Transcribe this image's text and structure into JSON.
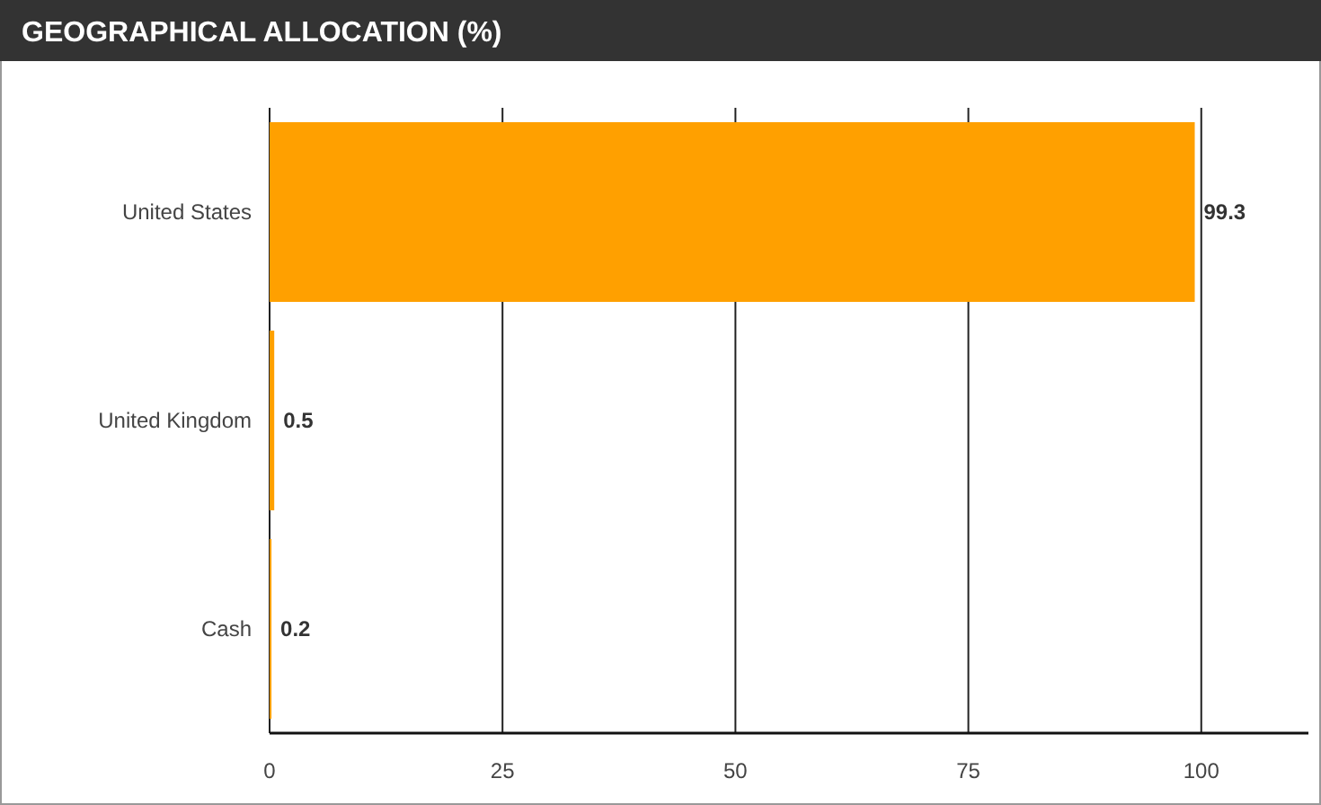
{
  "chart_data": {
    "type": "bar",
    "orientation": "horizontal",
    "title": "GEOGRAPHICAL ALLOCATION (%)",
    "categories": [
      "United States",
      "United Kingdom",
      "Cash"
    ],
    "values": [
      99.3,
      0.5,
      0.2
    ],
    "color": "#ffa000",
    "xlim": [
      0,
      111.5
    ],
    "xticks": [
      0,
      25,
      50,
      75,
      100
    ],
    "grid": "x",
    "data_labels": true
  }
}
